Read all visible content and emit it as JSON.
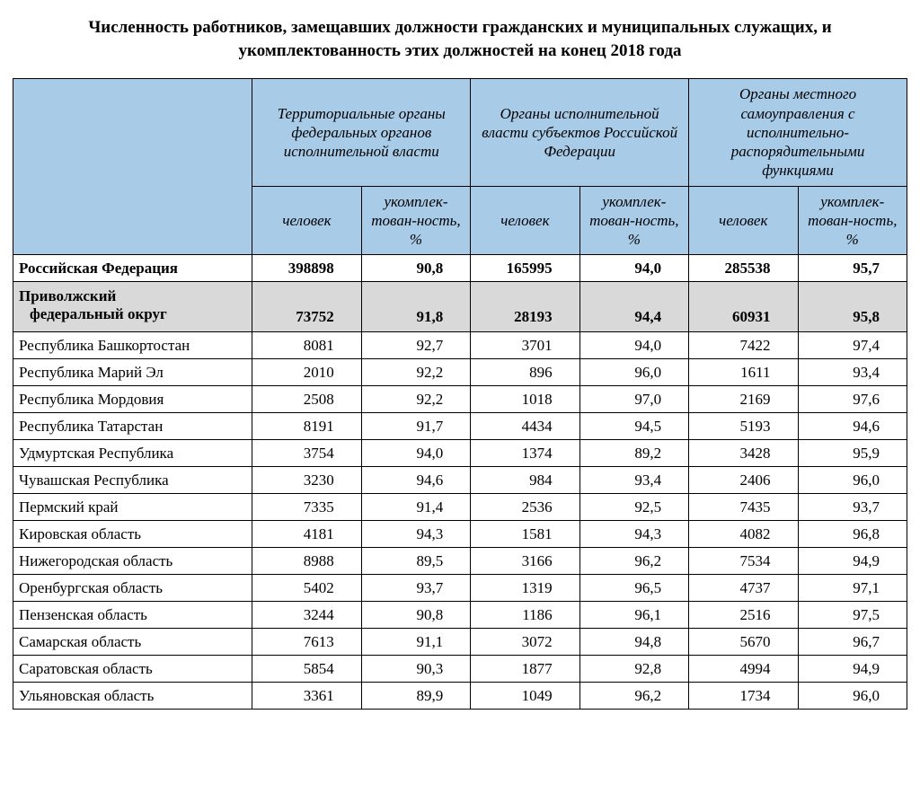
{
  "title": "Численность работников, замещавших должности гражданских и муниципальных служащих, и укомплектованность этих должностей на конец 2018 года",
  "table": {
    "header_bg": "#a8cbe8",
    "shade_bg": "#d9d9d9",
    "border_color": "#000000",
    "group_headers": [
      "Территориальные органы федеральных органов исполнительной власти",
      "Органы исполнительной власти субъектов Российской Федерации",
      "Органы местного самоуправления с исполнительно-распорядительными функциями"
    ],
    "sub_headers": {
      "people": "человек",
      "pct": "укомплек-тован-ность, %"
    },
    "rows": [
      {
        "name": "Российская Федерация",
        "bold": true,
        "shade": false,
        "v": [
          "398898",
          "90,8",
          "165995",
          "94,0",
          "285538",
          "95,7"
        ]
      },
      {
        "name": "Приволжский",
        "name2": "федеральный округ",
        "bold": true,
        "shade": true,
        "tall": true,
        "v": [
          "73752",
          "91,8",
          "28193",
          "94,4",
          "60931",
          "95,8"
        ]
      },
      {
        "name": "Республика Башкортостан",
        "v": [
          "8081",
          "92,7",
          "3701",
          "94,0",
          "7422",
          "97,4"
        ]
      },
      {
        "name": "Республика Марий Эл",
        "v": [
          "2010",
          "92,2",
          "896",
          "96,0",
          "1611",
          "93,4"
        ]
      },
      {
        "name": "Республика Мордовия",
        "v": [
          "2508",
          "92,2",
          "1018",
          "97,0",
          "2169",
          "97,6"
        ]
      },
      {
        "name": "Республика Татарстан",
        "v": [
          "8191",
          "91,7",
          "4434",
          "94,5",
          "5193",
          "94,6"
        ]
      },
      {
        "name": "Удмуртская Республика",
        "v": [
          "3754",
          "94,0",
          "1374",
          "89,2",
          "3428",
          "95,9"
        ]
      },
      {
        "name": "Чувашская Республика",
        "v": [
          "3230",
          "94,6",
          "984",
          "93,4",
          "2406",
          "96,0"
        ]
      },
      {
        "name": "Пермский край",
        "v": [
          "7335",
          "91,4",
          "2536",
          "92,5",
          "7435",
          "93,7"
        ]
      },
      {
        "name": "Кировская область",
        "v": [
          "4181",
          "94,3",
          "1581",
          "94,3",
          "4082",
          "96,8"
        ]
      },
      {
        "name": "Нижегородская область",
        "v": [
          "8988",
          "89,5",
          "3166",
          "96,2",
          "7534",
          "94,9"
        ]
      },
      {
        "name": "Оренбургская область",
        "v": [
          "5402",
          "93,7",
          "1319",
          "96,5",
          "4737",
          "97,1"
        ]
      },
      {
        "name": "Пензенская область",
        "v": [
          "3244",
          "90,8",
          "1186",
          "96,1",
          "2516",
          "97,5"
        ]
      },
      {
        "name": "Самарская область",
        "v": [
          "7613",
          "91,1",
          "3072",
          "94,8",
          "5670",
          "96,7"
        ]
      },
      {
        "name": "Саратовская область",
        "v": [
          "5854",
          "90,3",
          "1877",
          "92,8",
          "4994",
          "94,9"
        ]
      },
      {
        "name": "Ульяновская область",
        "v": [
          "3361",
          "89,9",
          "1049",
          "96,2",
          "1734",
          "96,0"
        ]
      }
    ]
  }
}
